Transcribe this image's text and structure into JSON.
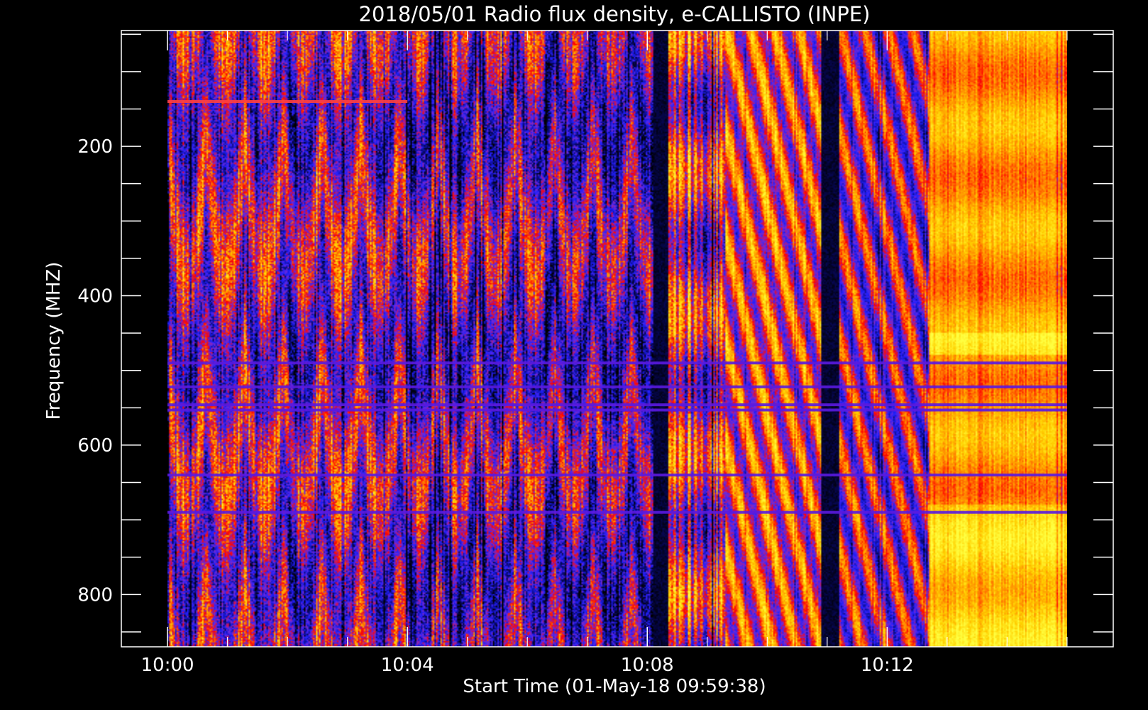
{
  "chart_data": {
    "type": "heatmap",
    "title": "2018/05/01  Radio flux density, e-CALLISTO (INPE)",
    "xlabel": "Start Time (01-May-18 09:59:38)",
    "ylabel": "Frequency (MHZ)",
    "x_time_ticks": [
      {
        "label": "10:00",
        "minutes": 0
      },
      {
        "label": "10:04",
        "minutes": 4
      },
      {
        "label": "10:08",
        "minutes": 8
      },
      {
        "label": "10:12",
        "minutes": 12
      }
    ],
    "xlim_minutes": [
      -0.77,
      15.77
    ],
    "ylim_mhz": [
      45,
      870
    ],
    "y_ticks": [
      200,
      400,
      600,
      800
    ],
    "data_time_range_minutes": [
      0,
      15
    ],
    "data_freq_range_mhz": [
      45,
      870
    ],
    "axis_color": "#ffffff",
    "background_color": "#000000",
    "colormap": [
      "#000000",
      "#0a0a7a",
      "#2020ff",
      "#7a2ad0",
      "#ff0000",
      "#ff7a00",
      "#ffd000",
      "#ffff40"
    ],
    "segments": [
      {
        "t_start": 0.0,
        "t_end": 3.9,
        "regime": "arcs",
        "level": 0.45
      },
      {
        "t_start": 3.9,
        "t_end": 6.5,
        "regime": "arcs",
        "level": 0.38
      },
      {
        "t_start": 6.5,
        "t_end": 8.1,
        "regime": "arcs",
        "level": 0.35
      },
      {
        "t_start": 8.1,
        "t_end": 8.35,
        "regime": "dark",
        "level": 0.0
      },
      {
        "t_start": 8.35,
        "t_end": 9.3,
        "regime": "vertical",
        "level": 0.55
      },
      {
        "t_start": 9.3,
        "t_end": 10.9,
        "regime": "diagonal",
        "level": 0.62
      },
      {
        "t_start": 10.9,
        "t_end": 11.2,
        "regime": "dark",
        "level": 0.05
      },
      {
        "t_start": 11.2,
        "t_end": 12.7,
        "regime": "diagonal",
        "level": 0.5
      },
      {
        "t_start": 12.7,
        "t_end": 15.0,
        "regime": "bright",
        "level": 0.78
      }
    ],
    "horizontal_lines_mhz": [
      {
        "freq": 140,
        "t_start": 0,
        "t_end": 4.0,
        "color": "#ff4040"
      },
      {
        "freq": 490,
        "t_start": 0,
        "t_end": 15,
        "color": "#5a1ae0"
      },
      {
        "freq": 522,
        "t_start": 0,
        "t_end": 15,
        "color": "#5a1ae0"
      },
      {
        "freq": 546,
        "t_start": 0,
        "t_end": 15,
        "color": "#5a1ae0"
      },
      {
        "freq": 553,
        "t_start": 0,
        "t_end": 15,
        "color": "#5a1ae0"
      },
      {
        "freq": 640,
        "t_start": 0,
        "t_end": 15,
        "color": "#5a1ae0"
      },
      {
        "freq": 690,
        "t_start": 0,
        "t_end": 15,
        "color": "#5a1ae0"
      }
    ],
    "grid": false,
    "legend": "none"
  }
}
